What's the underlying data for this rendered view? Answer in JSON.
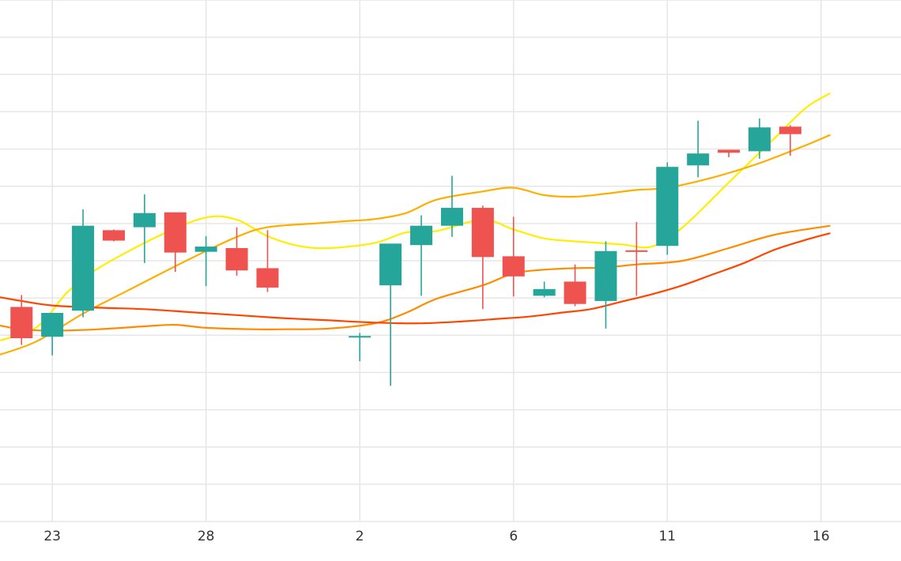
{
  "chart_data": {
    "type": "candlestick",
    "title": "",
    "xlabel": "",
    "ylabel": "",
    "x_ticks": [
      {
        "day": 23,
        "label": "23"
      },
      {
        "day": 28,
        "label": "28"
      },
      {
        "day": 33,
        "label": "2"
      },
      {
        "day": 38,
        "label": "6"
      },
      {
        "day": 43,
        "label": "11"
      },
      {
        "day": 48,
        "label": "16"
      }
    ],
    "grid": true,
    "y_ticks_shown": false,
    "xlim": [
      21.3,
      50.6
    ],
    "ylim": [
      0,
      700
    ],
    "colors": {
      "up": "#26a69a",
      "down": "#ef5350",
      "grid": "#e6e6e6",
      "axis_text": "#333333"
    },
    "candles": [
      {
        "day": 22.0,
        "open": 288,
        "high": 304,
        "low": 237,
        "close": 246
      },
      {
        "day": 23.0,
        "open": 248,
        "high": 277,
        "low": 223,
        "close": 280
      },
      {
        "day": 24.0,
        "open": 283,
        "high": 419,
        "low": 274,
        "close": 397
      },
      {
        "day": 25.0,
        "open": 391,
        "high": 392,
        "low": 376,
        "close": 377
      },
      {
        "day": 26.0,
        "open": 395,
        "high": 439,
        "low": 347,
        "close": 414
      },
      {
        "day": 27.0,
        "open": 415,
        "high": 415,
        "low": 335,
        "close": 361
      },
      {
        "day": 28.0,
        "open": 362,
        "high": 383,
        "low": 316,
        "close": 369
      },
      {
        "day": 29.0,
        "open": 367,
        "high": 395,
        "low": 330,
        "close": 337
      },
      {
        "day": 30.0,
        "open": 340,
        "high": 391,
        "low": 308,
        "close": 314
      },
      {
        "day": 33.0,
        "open": 247,
        "high": 253,
        "low": 215,
        "close": 249
      },
      {
        "day": 34.0,
        "open": 317,
        "high": 373,
        "low": 182,
        "close": 373
      },
      {
        "day": 35.0,
        "open": 371,
        "high": 411,
        "low": 303,
        "close": 397
      },
      {
        "day": 36.0,
        "open": 397,
        "high": 464,
        "low": 382,
        "close": 421
      },
      {
        "day": 37.0,
        "open": 421,
        "high": 424,
        "low": 285,
        "close": 355
      },
      {
        "day": 38.0,
        "open": 356,
        "high": 409,
        "low": 302,
        "close": 329
      },
      {
        "day": 39.0,
        "open": 303,
        "high": 322,
        "low": 301,
        "close": 312
      },
      {
        "day": 40.0,
        "open": 322,
        "high": 345,
        "low": 289,
        "close": 292
      },
      {
        "day": 41.0,
        "open": 296,
        "high": 376,
        "low": 259,
        "close": 363
      },
      {
        "day": 42.0,
        "open": 364,
        "high": 402,
        "low": 303,
        "close": 362
      },
      {
        "day": 43.0,
        "open": 370,
        "high": 482,
        "low": 358,
        "close": 476
      },
      {
        "day": 44.0,
        "open": 478,
        "high": 538,
        "low": 462,
        "close": 494
      },
      {
        "day": 45.0,
        "open": 499,
        "high": 499,
        "low": 489,
        "close": 495
      },
      {
        "day": 46.0,
        "open": 497,
        "high": 541,
        "low": 487,
        "close": 529
      },
      {
        "day": 47.0,
        "open": 530,
        "high": 532,
        "low": 491,
        "close": 520
      }
    ],
    "series": [
      {
        "name": "",
        "color": "#ffee00",
        "values": [
          [
            21.3,
            243
          ],
          [
            22.5,
            261
          ],
          [
            23.5,
            308
          ],
          [
            24.5,
            340
          ],
          [
            26.5,
            384
          ],
          [
            28.0,
            408
          ],
          [
            29.0,
            405
          ],
          [
            30.0,
            383
          ],
          [
            31.0,
            370
          ],
          [
            32.0,
            367
          ],
          [
            33.5,
            374
          ],
          [
            34.5,
            388
          ],
          [
            35.5,
            390
          ],
          [
            37.0,
            405
          ],
          [
            38.0,
            392
          ],
          [
            39.0,
            380
          ],
          [
            40.0,
            376
          ],
          [
            41.5,
            372
          ],
          [
            42.5,
            369
          ],
          [
            43.5,
            395
          ],
          [
            45.0,
            455
          ],
          [
            46.5,
            515
          ],
          [
            47.5,
            555
          ],
          [
            48.3,
            575
          ]
        ]
      },
      {
        "name": "",
        "color": "#ffae00",
        "values": [
          [
            21.3,
            224
          ],
          [
            22.5,
            242
          ],
          [
            24.0,
            279
          ],
          [
            25.5,
            311
          ],
          [
            27.5,
            353
          ],
          [
            29.0,
            382
          ],
          [
            30.0,
            395
          ],
          [
            31.5,
            400
          ],
          [
            32.5,
            403
          ],
          [
            33.5,
            406
          ],
          [
            34.5,
            414
          ],
          [
            35.5,
            432
          ],
          [
            37.0,
            443
          ],
          [
            38.0,
            448
          ],
          [
            39.0,
            438
          ],
          [
            40.0,
            436
          ],
          [
            41.0,
            440
          ],
          [
            42.0,
            445
          ],
          [
            43.0,
            448
          ],
          [
            44.5,
            462
          ],
          [
            46.0,
            481
          ],
          [
            47.5,
            505
          ],
          [
            48.3,
            519
          ]
        ]
      },
      {
        "name": "",
        "color": "#ff8c00",
        "values": [
          [
            21.3,
            263
          ],
          [
            22.0,
            258
          ],
          [
            23.0,
            256
          ],
          [
            24.5,
            258
          ],
          [
            26.0,
            262
          ],
          [
            27.0,
            264
          ],
          [
            28.0,
            260
          ],
          [
            29.5,
            258
          ],
          [
            30.5,
            258
          ],
          [
            32.0,
            259
          ],
          [
            33.5,
            266
          ],
          [
            34.5,
            280
          ],
          [
            35.5,
            299
          ],
          [
            37.0,
            317
          ],
          [
            38.0,
            333
          ],
          [
            39.0,
            338
          ],
          [
            40.0,
            340
          ],
          [
            41.0,
            341
          ],
          [
            42.0,
            345
          ],
          [
            43.5,
            350
          ],
          [
            45.0,
            367
          ],
          [
            46.5,
            385
          ],
          [
            48.3,
            397
          ]
        ]
      },
      {
        "name": "",
        "color": "#ff4500",
        "values": [
          [
            21.3,
            301
          ],
          [
            22.0,
            296
          ],
          [
            23.0,
            290
          ],
          [
            24.5,
            287
          ],
          [
            26.0,
            285
          ],
          [
            27.5,
            281
          ],
          [
            29.0,
            277
          ],
          [
            30.5,
            273
          ],
          [
            32.0,
            270
          ],
          [
            33.5,
            267
          ],
          [
            35.0,
            266
          ],
          [
            36.5,
            269
          ],
          [
            37.5,
            272
          ],
          [
            38.5,
            275
          ],
          [
            39.5,
            280
          ],
          [
            40.5,
            285
          ],
          [
            41.5,
            295
          ],
          [
            42.5,
            305
          ],
          [
            43.5,
            317
          ],
          [
            44.5,
            332
          ],
          [
            45.5,
            347
          ],
          [
            46.5,
            365
          ],
          [
            47.5,
            378
          ],
          [
            48.3,
            387
          ]
        ]
      }
    ]
  }
}
